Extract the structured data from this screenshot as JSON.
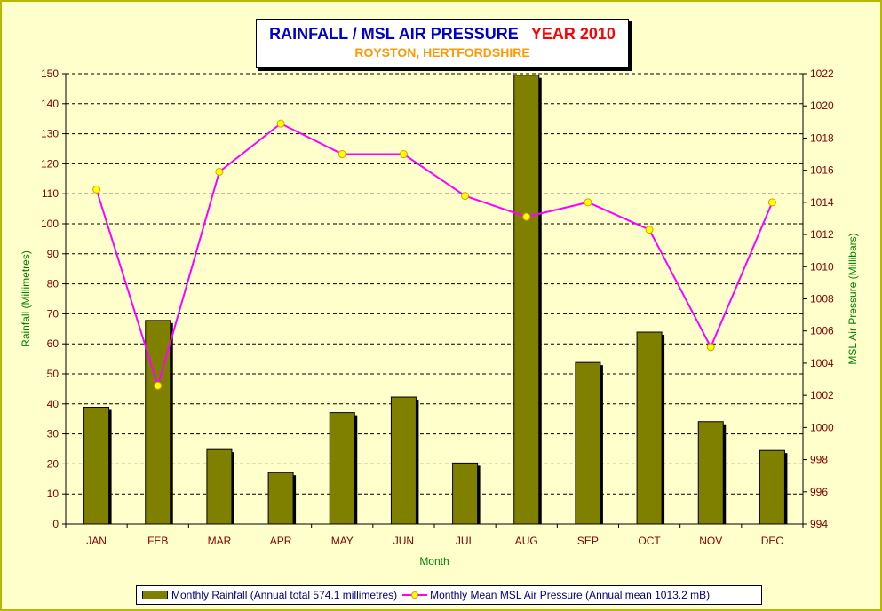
{
  "colors": {
    "background": "#ffffcc",
    "bar": "#808000",
    "line": "#ff00ff",
    "marker": "#ffff00",
    "tick_text": "#800000",
    "axis_title": "#008000",
    "title_main": "#0000cc",
    "title_year": "#ff0000",
    "subtitle": "#ff9900"
  },
  "chart_data": {
    "type": "bar",
    "title": "RAINFALL / MSL AIR PRESSURE",
    "title_year": "YEAR 2010",
    "subtitle": "ROYSTON, HERTFORDSHIRE",
    "xlabel": "Month",
    "ylabel_left": "Rainfall (Millimetres)",
    "ylabel_right": "MSL Air Pressure (Millibars)",
    "categories": [
      "JAN",
      "FEB",
      "MAR",
      "APR",
      "MAY",
      "JUN",
      "JUL",
      "AUG",
      "SEP",
      "OCT",
      "NOV",
      "DEC"
    ],
    "ylim_left": [
      0,
      150
    ],
    "yticks_left": [
      0,
      10,
      20,
      30,
      40,
      50,
      60,
      70,
      80,
      90,
      100,
      110,
      120,
      130,
      140,
      150
    ],
    "ylim_right": [
      994,
      1022
    ],
    "yticks_right": [
      994,
      996,
      998,
      1000,
      1002,
      1004,
      1006,
      1008,
      1010,
      1012,
      1014,
      1016,
      1018,
      1020,
      1022
    ],
    "grid": true,
    "legend_position": "bottom",
    "series": [
      {
        "name": "Monthly Rainfall (Annual total 574.1 millimetres)",
        "type": "bar",
        "axis": "left",
        "values": [
          38.9,
          67.8,
          24.8,
          17.1,
          37.1,
          42.3,
          20.3,
          149.5,
          53.8,
          63.9,
          34.1,
          24.5
        ]
      },
      {
        "name": "Monthly Mean MSL Air Pressure (Annual mean 1013.2 mB)",
        "type": "line",
        "axis": "right",
        "values": [
          1014.8,
          1002.6,
          1015.9,
          1018.9,
          1017.0,
          1017.0,
          1014.4,
          1013.1,
          1014.0,
          1012.3,
          1005.0,
          1014.0
        ]
      }
    ]
  }
}
